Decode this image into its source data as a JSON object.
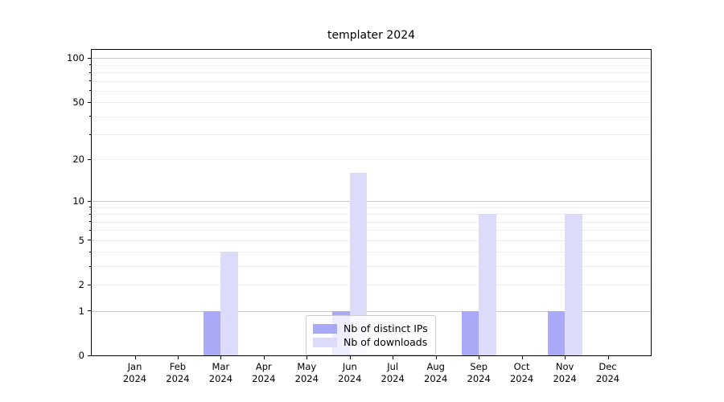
{
  "chart_data": {
    "type": "bar",
    "title": "templater 2024",
    "yscale": "log1p",
    "ylim": [
      0,
      114
    ],
    "categories": [
      "Jan",
      "Feb",
      "Mar",
      "Apr",
      "May",
      "Jun",
      "Jul",
      "Aug",
      "Sep",
      "Oct",
      "Nov",
      "Dec"
    ],
    "year_label": "2024",
    "series": [
      {
        "name": "Nb of distinct IPs",
        "color": "#a9a9f8",
        "values": [
          0,
          0,
          1,
          0,
          0,
          1,
          0,
          0,
          1,
          0,
          1,
          0
        ]
      },
      {
        "name": "Nb of downloads",
        "color": "#dcdcfa",
        "values": [
          0,
          0,
          4,
          0,
          0,
          16,
          0,
          0,
          8,
          0,
          8,
          0
        ]
      }
    ],
    "y_tick_labels": [
      "0",
      "1",
      "2",
      "5",
      "10",
      "20",
      "50",
      "100"
    ],
    "y_tick_values": [
      0,
      1,
      2,
      5,
      10,
      20,
      50,
      100
    ],
    "major_gridlines": [
      1,
      10,
      100
    ],
    "minor_gridlines": [
      2,
      3,
      4,
      6,
      7,
      8,
      9,
      20,
      30,
      40,
      50,
      60,
      70,
      80,
      90,
      5
    ],
    "legend_position": "lower center",
    "xlabel": "",
    "ylabel": ""
  },
  "colors": {
    "distinct_ips_bar": "#a9a9f8",
    "downloads_bar": "#dcdcfa",
    "major_grid": "#cccccc",
    "minor_grid": "#ededed",
    "spine": "#000000",
    "background": "#ffffff"
  }
}
